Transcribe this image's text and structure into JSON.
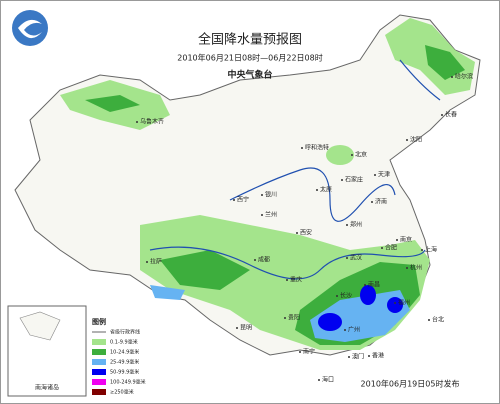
{
  "header": {
    "title": "全国降水量预报图",
    "period": "2010年06月21日08时—06月22日08时",
    "agency": "中央气象台"
  },
  "cities": [
    "哈尔滨",
    "长春",
    "沈阳",
    "乌鲁木齐",
    "呼和浩特",
    "北京",
    "天津",
    "石家庄",
    "太原",
    "济南",
    "银川",
    "西宁",
    "兰州",
    "郑州",
    "西安",
    "合肥",
    "南京",
    "上海",
    "武汉",
    "杭州",
    "拉萨",
    "成都",
    "重庆",
    "长沙",
    "南昌",
    "福州",
    "贵阳",
    "昆明",
    "南宁",
    "广州",
    "台北",
    "香港",
    "澳门",
    "海口"
  ],
  "legend": {
    "title": "图例",
    "items": [
      {
        "label": "省级行政界线"
      },
      {
        "label": "0.1-9.9毫米",
        "color": "#a4e48c"
      },
      {
        "label": "10-24.9毫米",
        "color": "#3dae3d"
      },
      {
        "label": "25-49.9毫米",
        "color": "#66b3f2"
      },
      {
        "label": "50-99.9毫米",
        "color": "#0000f0"
      },
      {
        "label": "100-249.9毫米",
        "color": "#f000f0"
      },
      {
        "label": "≥250毫米",
        "color": "#800000"
      }
    ]
  },
  "inset": {
    "label": "南海诸岛"
  },
  "footer": "2010年06月19日05时发布"
}
